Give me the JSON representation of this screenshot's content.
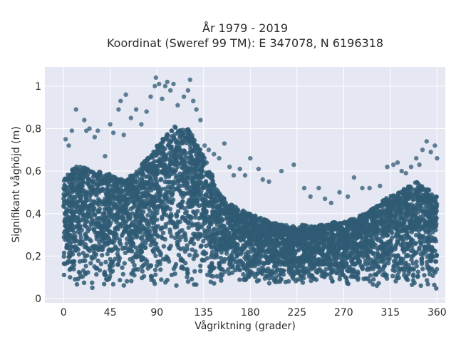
{
  "chart_data": {
    "type": "scatter",
    "title_lines": [
      "År 1979 - 2019",
      "Koordinat (Sweref 99 TM): E 347078, N 6196318"
    ],
    "xlabel": "Vågriktning (grader)",
    "ylabel": "Signifikant våghöjd (m)",
    "xlim": [
      -18,
      368
    ],
    "ylim": [
      -0.02,
      1.09
    ],
    "xticks": [
      0,
      45,
      90,
      135,
      180,
      225,
      270,
      315,
      360
    ],
    "xtick_labels": [
      "0",
      "45",
      "90",
      "135",
      "180",
      "225",
      "270",
      "315",
      "360"
    ],
    "yticks": [
      0,
      0.2,
      0.4,
      0.6,
      0.8,
      1
    ],
    "ytick_labels": [
      "0",
      "0,2",
      "0,4",
      "0,6",
      "0,8",
      "1"
    ],
    "grid": true,
    "marker_color": "#2f5a74",
    "plot_background": "#e5e7f2",
    "envelope_x": [
      0,
      10,
      20,
      30,
      40,
      50,
      60,
      70,
      80,
      90,
      100,
      110,
      120,
      130,
      140,
      150,
      160,
      170,
      180,
      190,
      200,
      210,
      220,
      230,
      240,
      250,
      260,
      270,
      280,
      290,
      300,
      310,
      320,
      330,
      340,
      350,
      360
    ],
    "envelope_upper": [
      0.56,
      0.62,
      0.62,
      0.6,
      0.6,
      0.57,
      0.56,
      0.6,
      0.66,
      0.72,
      0.78,
      0.82,
      0.8,
      0.72,
      0.62,
      0.5,
      0.45,
      0.42,
      0.4,
      0.38,
      0.36,
      0.35,
      0.34,
      0.35,
      0.34,
      0.35,
      0.36,
      0.36,
      0.38,
      0.4,
      0.43,
      0.47,
      0.5,
      0.52,
      0.55,
      0.52,
      0.48
    ],
    "envelope_lower": [
      0.04,
      0.04,
      0.04,
      0.04,
      0.04,
      0.04,
      0.04,
      0.04,
      0.05,
      0.05,
      0.05,
      0.05,
      0.05,
      0.05,
      0.05,
      0.05,
      0.05,
      0.05,
      0.06,
      0.06,
      0.06,
      0.06,
      0.07,
      0.07,
      0.07,
      0.07,
      0.07,
      0.07,
      0.06,
      0.06,
      0.06,
      0.05,
      0.05,
      0.04,
      0.04,
      0.04,
      0.04
    ],
    "outliers": [
      {
        "x": 2,
        "y": 0.75
      },
      {
        "x": 5,
        "y": 0.72
      },
      {
        "x": 8,
        "y": 0.79
      },
      {
        "x": 12,
        "y": 0.89
      },
      {
        "x": 20,
        "y": 0.84
      },
      {
        "x": 22,
        "y": 0.79
      },
      {
        "x": 25,
        "y": 0.8
      },
      {
        "x": 30,
        "y": 0.76
      },
      {
        "x": 33,
        "y": 0.79
      },
      {
        "x": 40,
        "y": 0.67
      },
      {
        "x": 45,
        "y": 0.82
      },
      {
        "x": 48,
        "y": 0.78
      },
      {
        "x": 53,
        "y": 0.89
      },
      {
        "x": 55,
        "y": 0.93
      },
      {
        "x": 58,
        "y": 0.77
      },
      {
        "x": 60,
        "y": 0.96
      },
      {
        "x": 65,
        "y": 0.85
      },
      {
        "x": 70,
        "y": 0.89
      },
      {
        "x": 75,
        "y": 0.82
      },
      {
        "x": 80,
        "y": 0.88
      },
      {
        "x": 84,
        "y": 0.95
      },
      {
        "x": 88,
        "y": 1.0
      },
      {
        "x": 89,
        "y": 1.04
      },
      {
        "x": 92,
        "y": 1.01
      },
      {
        "x": 95,
        "y": 0.94
      },
      {
        "x": 98,
        "y": 1.0
      },
      {
        "x": 100,
        "y": 1.02
      },
      {
        "x": 103,
        "y": 0.98
      },
      {
        "x": 106,
        "y": 1.01
      },
      {
        "x": 110,
        "y": 0.91
      },
      {
        "x": 116,
        "y": 0.95
      },
      {
        "x": 120,
        "y": 0.98
      },
      {
        "x": 122,
        "y": 1.03
      },
      {
        "x": 125,
        "y": 0.93
      },
      {
        "x": 128,
        "y": 0.89
      },
      {
        "x": 132,
        "y": 0.84
      },
      {
        "x": 136,
        "y": 0.72
      },
      {
        "x": 140,
        "y": 0.7
      },
      {
        "x": 145,
        "y": 0.68
      },
      {
        "x": 150,
        "y": 0.66
      },
      {
        "x": 155,
        "y": 0.73
      },
      {
        "x": 160,
        "y": 0.62
      },
      {
        "x": 164,
        "y": 0.58
      },
      {
        "x": 170,
        "y": 0.61
      },
      {
        "x": 175,
        "y": 0.58
      },
      {
        "x": 180,
        "y": 0.66
      },
      {
        "x": 188,
        "y": 0.61
      },
      {
        "x": 192,
        "y": 0.56
      },
      {
        "x": 198,
        "y": 0.55
      },
      {
        "x": 210,
        "y": 0.6
      },
      {
        "x": 222,
        "y": 0.63
      },
      {
        "x": 232,
        "y": 0.52
      },
      {
        "x": 238,
        "y": 0.48
      },
      {
        "x": 246,
        "y": 0.52
      },
      {
        "x": 252,
        "y": 0.47
      },
      {
        "x": 258,
        "y": 0.45
      },
      {
        "x": 266,
        "y": 0.5
      },
      {
        "x": 274,
        "y": 0.48
      },
      {
        "x": 280,
        "y": 0.57
      },
      {
        "x": 288,
        "y": 0.52
      },
      {
        "x": 295,
        "y": 0.52
      },
      {
        "x": 305,
        "y": 0.53
      },
      {
        "x": 312,
        "y": 0.62
      },
      {
        "x": 318,
        "y": 0.63
      },
      {
        "x": 322,
        "y": 0.64
      },
      {
        "x": 326,
        "y": 0.6
      },
      {
        "x": 330,
        "y": 0.59
      },
      {
        "x": 335,
        "y": 0.62
      },
      {
        "x": 340,
        "y": 0.66
      },
      {
        "x": 343,
        "y": 0.63
      },
      {
        "x": 346,
        "y": 0.7
      },
      {
        "x": 350,
        "y": 0.74
      },
      {
        "x": 354,
        "y": 0.69
      },
      {
        "x": 358,
        "y": 0.72
      },
      {
        "x": 360,
        "y": 0.66
      }
    ]
  }
}
